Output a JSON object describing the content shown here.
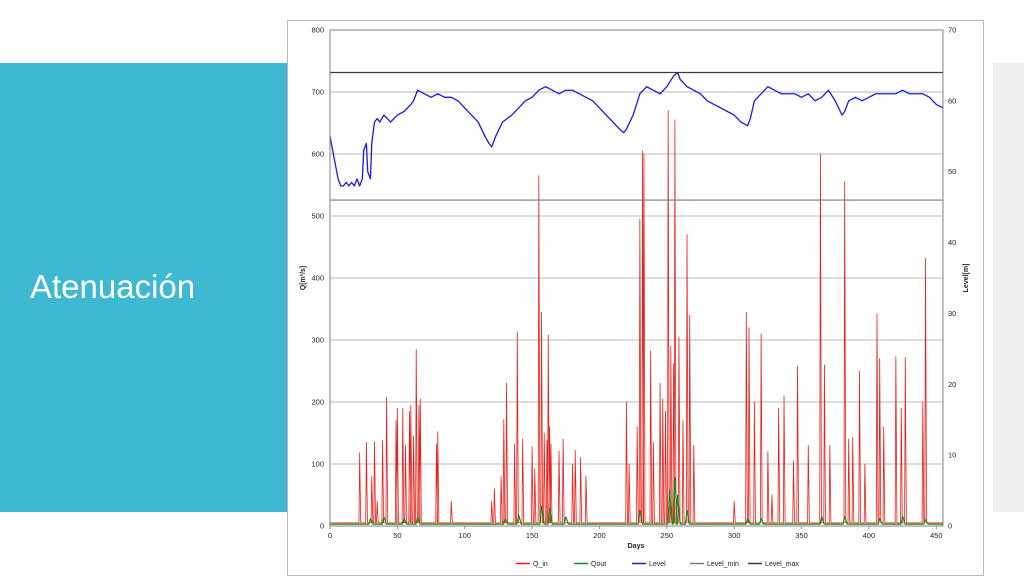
{
  "slide": {
    "title": "Atenuación",
    "accent_color": "#3fb8d1",
    "side_panel_color": "#efefef"
  },
  "chart_data": {
    "type": "line",
    "xlabel": "Days",
    "ylabel_left": "Q[m³/s]",
    "ylabel_right": "Level[m]",
    "xlim": [
      0,
      455
    ],
    "ylim_left": [
      0,
      800
    ],
    "ylim_right": [
      0,
      70
    ],
    "x_ticks": [
      0,
      50,
      100,
      150,
      200,
      250,
      300,
      350,
      400,
      450
    ],
    "y_ticks_left": [
      0,
      100,
      200,
      300,
      400,
      500,
      600,
      700,
      800
    ],
    "y_ticks_right": [
      0,
      10,
      20,
      30,
      40,
      50,
      60,
      70
    ],
    "grid": true,
    "legend_position": "bottom",
    "legend": [
      "Q_in",
      "Qout",
      "Level",
      "Level_min",
      "Level_max"
    ],
    "series": [
      {
        "name": "Q_in",
        "axis": "left",
        "color": "#e8211a",
        "baseline": 5,
        "peaks": [
          [
            22,
            118
          ],
          [
            27,
            135
          ],
          [
            31,
            80
          ],
          [
            33,
            136
          ],
          [
            35,
            40
          ],
          [
            39,
            138
          ],
          [
            42,
            208
          ],
          [
            49,
            170
          ],
          [
            50,
            190
          ],
          [
            54,
            190
          ],
          [
            56,
            130
          ],
          [
            59,
            185
          ],
          [
            60,
            195
          ],
          [
            62,
            145
          ],
          [
            64,
            285
          ],
          [
            66,
            195
          ],
          [
            67,
            205
          ],
          [
            79,
            132
          ],
          [
            80,
            152
          ],
          [
            90,
            40
          ],
          [
            120,
            40
          ],
          [
            122,
            60
          ],
          [
            127,
            80
          ],
          [
            129,
            172
          ],
          [
            131,
            230
          ],
          [
            137,
            132
          ],
          [
            139,
            313
          ],
          [
            143,
            140
          ],
          [
            150,
            128
          ],
          [
            152,
            92
          ],
          [
            155,
            565
          ],
          [
            157,
            345
          ],
          [
            159,
            150
          ],
          [
            161,
            138
          ],
          [
            162,
            308
          ],
          [
            163,
            160
          ],
          [
            164,
            132
          ],
          [
            170,
            121
          ],
          [
            173,
            140
          ],
          [
            180,
            100
          ],
          [
            182,
            122
          ],
          [
            186,
            110
          ],
          [
            190,
            80
          ],
          [
            220,
            200
          ],
          [
            222,
            100
          ],
          [
            228,
            160
          ],
          [
            230,
            495
          ],
          [
            232,
            605
          ],
          [
            233,
            600
          ],
          [
            238,
            282
          ],
          [
            240,
            135
          ],
          [
            245,
            230
          ],
          [
            247,
            205
          ],
          [
            249,
            185
          ],
          [
            251,
            670
          ],
          [
            253,
            290
          ],
          [
            255,
            262
          ],
          [
            256,
            655
          ],
          [
            259,
            305
          ],
          [
            262,
            170
          ],
          [
            265,
            470
          ],
          [
            267,
            340
          ],
          [
            270,
            130
          ],
          [
            300,
            40
          ],
          [
            309,
            345
          ],
          [
            311,
            320
          ],
          [
            315,
            200
          ],
          [
            320,
            310
          ],
          [
            325,
            120
          ],
          [
            328,
            50
          ],
          [
            333,
            190
          ],
          [
            337,
            210
          ],
          [
            344,
            105
          ],
          [
            347,
            258
          ],
          [
            355,
            130
          ],
          [
            364,
            600
          ],
          [
            367,
            260
          ],
          [
            371,
            130
          ],
          [
            382,
            555
          ],
          [
            385,
            140
          ],
          [
            388,
            143
          ],
          [
            393,
            250
          ],
          [
            397,
            100
          ],
          [
            406,
            342
          ],
          [
            408,
            270
          ],
          [
            411,
            160
          ],
          [
            420,
            273
          ],
          [
            424,
            190
          ],
          [
            427,
            272
          ],
          [
            440,
            200
          ],
          [
            442,
            432
          ]
        ]
      },
      {
        "name": "Qout",
        "axis": "left",
        "color": "#1a8a1a",
        "baseline": 3,
        "peaks": [
          [
            30,
            12
          ],
          [
            40,
            15
          ],
          [
            55,
            12
          ],
          [
            65,
            15
          ],
          [
            130,
            12
          ],
          [
            140,
            18
          ],
          [
            157,
            32
          ],
          [
            163,
            28
          ],
          [
            175,
            15
          ],
          [
            230,
            25
          ],
          [
            252,
            58
          ],
          [
            256,
            78
          ],
          [
            258,
            50
          ],
          [
            265,
            25
          ],
          [
            310,
            12
          ],
          [
            320,
            12
          ],
          [
            365,
            15
          ],
          [
            382,
            15
          ],
          [
            408,
            12
          ],
          [
            425,
            16
          ],
          [
            442,
            10
          ]
        ]
      },
      {
        "name": "Level",
        "axis": "right",
        "color": "#1a1adc",
        "points": [
          [
            0,
            55
          ],
          [
            2,
            53
          ],
          [
            4,
            51
          ],
          [
            6,
            49
          ],
          [
            8,
            48
          ],
          [
            10,
            48
          ],
          [
            12,
            48.5
          ],
          [
            14,
            48
          ],
          [
            16,
            48.5
          ],
          [
            18,
            48
          ],
          [
            20,
            49
          ],
          [
            22,
            48
          ],
          [
            24,
            49
          ],
          [
            25,
            53
          ],
          [
            27,
            54
          ],
          [
            28,
            50
          ],
          [
            30,
            49
          ],
          [
            31,
            54
          ],
          [
            33,
            57
          ],
          [
            35,
            57.5
          ],
          [
            37,
            57
          ],
          [
            40,
            58
          ],
          [
            45,
            57
          ],
          [
            50,
            58
          ],
          [
            55,
            58.5
          ],
          [
            60,
            59.5
          ],
          [
            62,
            60
          ],
          [
            65,
            61.5
          ],
          [
            70,
            61
          ],
          [
            75,
            60.5
          ],
          [
            80,
            61
          ],
          [
            85,
            60.5
          ],
          [
            90,
            60.5
          ],
          [
            95,
            60
          ],
          [
            100,
            59
          ],
          [
            105,
            58
          ],
          [
            110,
            57
          ],
          [
            115,
            55
          ],
          [
            118,
            54
          ],
          [
            120,
            53.5
          ],
          [
            123,
            55
          ],
          [
            128,
            57
          ],
          [
            135,
            58
          ],
          [
            140,
            59
          ],
          [
            145,
            60
          ],
          [
            150,
            60.5
          ],
          [
            155,
            61.5
          ],
          [
            160,
            62
          ],
          [
            165,
            61.5
          ],
          [
            170,
            61
          ],
          [
            175,
            61.5
          ],
          [
            180,
            61.5
          ],
          [
            185,
            61
          ],
          [
            190,
            60.5
          ],
          [
            195,
            60
          ],
          [
            200,
            59
          ],
          [
            205,
            58
          ],
          [
            210,
            57
          ],
          [
            215,
            56
          ],
          [
            218,
            55.5
          ],
          [
            220,
            56
          ],
          [
            225,
            58
          ],
          [
            230,
            61
          ],
          [
            235,
            62
          ],
          [
            240,
            61.5
          ],
          [
            245,
            61
          ],
          [
            250,
            62
          ],
          [
            255,
            63.5
          ],
          [
            258,
            64
          ],
          [
            260,
            63
          ],
          [
            265,
            62
          ],
          [
            270,
            61.5
          ],
          [
            275,
            61
          ],
          [
            280,
            60
          ],
          [
            285,
            59.5
          ],
          [
            290,
            59
          ],
          [
            295,
            58.5
          ],
          [
            300,
            58
          ],
          [
            305,
            57
          ],
          [
            310,
            56.5
          ],
          [
            312,
            57.5
          ],
          [
            315,
            60
          ],
          [
            320,
            61
          ],
          [
            325,
            62
          ],
          [
            330,
            61.5
          ],
          [
            335,
            61
          ],
          [
            340,
            61
          ],
          [
            345,
            61
          ],
          [
            350,
            60.5
          ],
          [
            355,
            61
          ],
          [
            360,
            60
          ],
          [
            365,
            60.5
          ],
          [
            370,
            61.5
          ],
          [
            375,
            60
          ],
          [
            380,
            58
          ],
          [
            382,
            58.5
          ],
          [
            385,
            60
          ],
          [
            390,
            60.5
          ],
          [
            395,
            60
          ],
          [
            400,
            60.5
          ],
          [
            405,
            61
          ],
          [
            410,
            61
          ],
          [
            415,
            61
          ],
          [
            420,
            61
          ],
          [
            425,
            61.5
          ],
          [
            430,
            61
          ],
          [
            435,
            61
          ],
          [
            440,
            61
          ],
          [
            445,
            60.5
          ],
          [
            450,
            59.5
          ],
          [
            455,
            59
          ]
        ]
      },
      {
        "name": "Level_min",
        "axis": "right",
        "color": "#7a7a7a",
        "value": 46
      },
      {
        "name": "Level_max",
        "axis": "right",
        "color": "#3a3a3a",
        "value": 64
      }
    ]
  }
}
